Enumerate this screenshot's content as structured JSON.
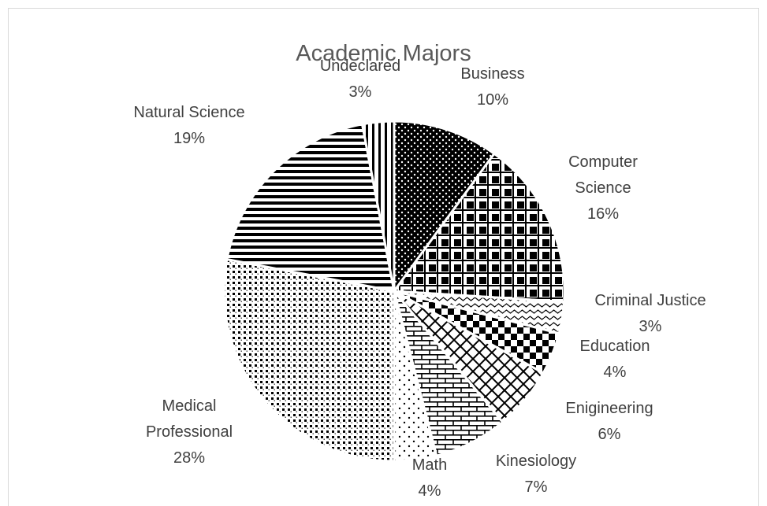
{
  "chart_data": {
    "type": "pie",
    "title": "Academic Majors",
    "categories": [
      "Business",
      "Computer Science",
      "Criminal Justice",
      "Education",
      "Enigineering",
      "Kinesiology",
      "Math",
      "Medical Professional",
      "Natural Science",
      "Undeclared"
    ],
    "values": [
      10,
      16,
      3,
      4,
      6,
      7,
      4,
      28,
      19,
      3
    ],
    "value_labels": [
      "10%",
      "16%",
      "3%",
      "4%",
      "6%",
      "7%",
      "4%",
      "28%",
      "19%",
      "3%"
    ]
  }
}
